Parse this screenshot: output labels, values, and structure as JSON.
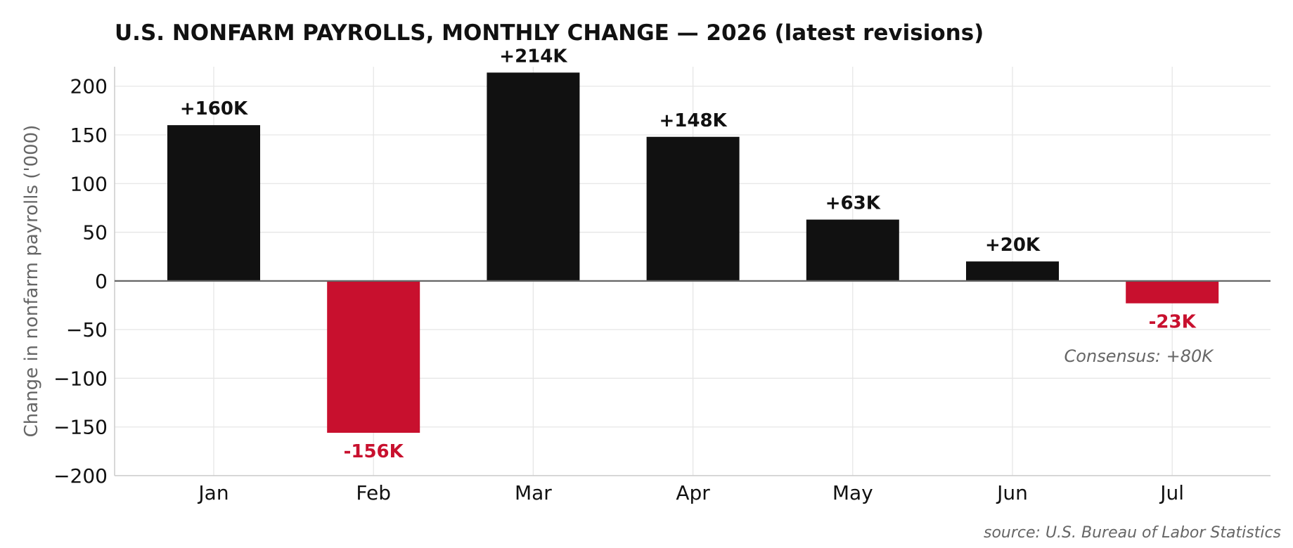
{
  "colors": {
    "positive": "#111111",
    "negative": "#c8102e",
    "grid": "#e6e6e6",
    "zero_line": "#666666",
    "axis": "#cccccc"
  },
  "chart_data": {
    "type": "bar",
    "title": "U.S. NONFARM PAYROLLS, MONTHLY CHANGE — 2026 (latest revisions)",
    "xlabel": "",
    "ylabel": "Change in nonfarm payrolls ('000)",
    "categories": [
      "Jan",
      "Feb",
      "Mar",
      "Apr",
      "May",
      "Jun",
      "Jul"
    ],
    "values": [
      160,
      -156,
      214,
      148,
      63,
      20,
      -23
    ],
    "data_labels": [
      "+160K",
      "-156K",
      "+214K",
      "+148K",
      "+63K",
      "+20K",
      "-23K"
    ],
    "ylim": [
      -200,
      220
    ],
    "yticks": [
      -200,
      -150,
      -100,
      -50,
      0,
      50,
      100,
      150,
      200
    ],
    "ytick_labels": [
      "−200",
      "−150",
      "−100",
      "−50",
      "0",
      "50",
      "100",
      "150",
      "200"
    ],
    "grid": true,
    "annotation": "Consensus: +80K",
    "source": "source: U.S. Bureau of Labor Statistics"
  }
}
